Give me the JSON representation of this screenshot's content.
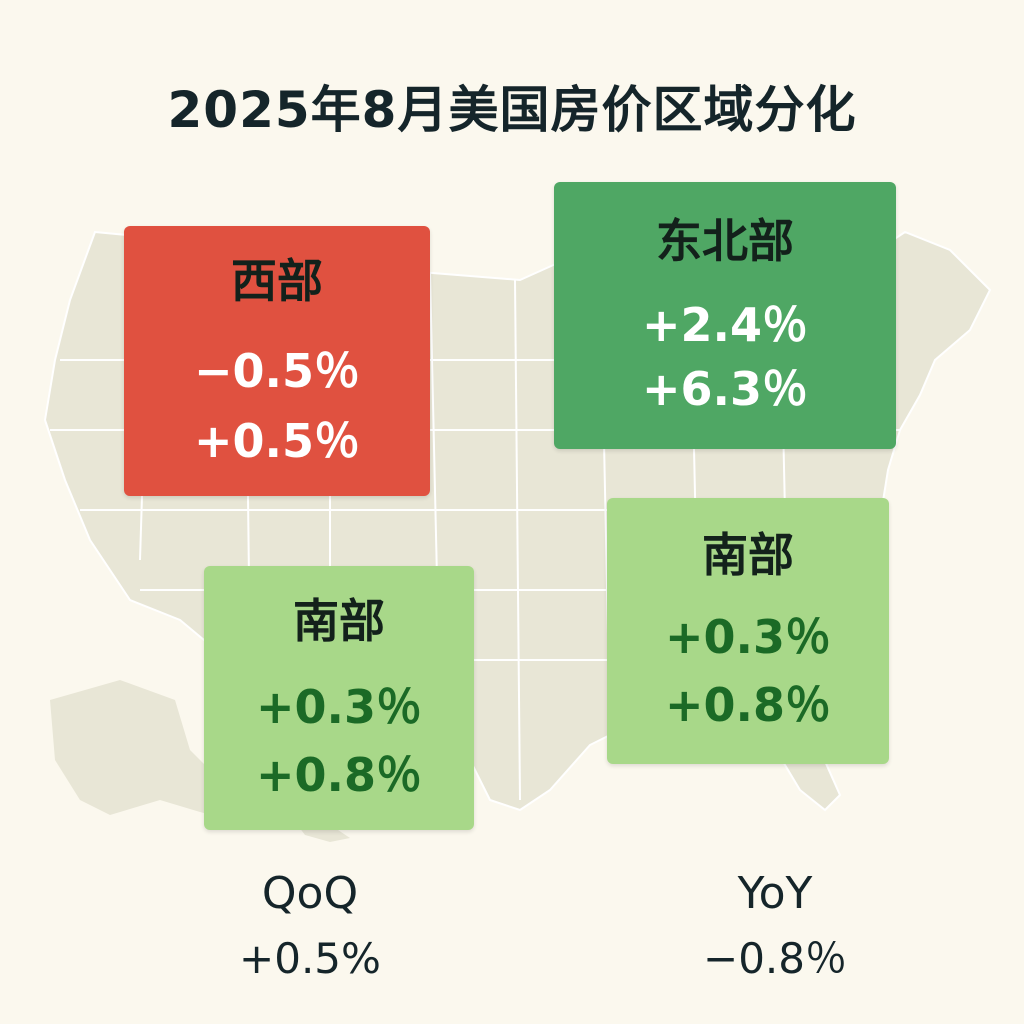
{
  "title": "2025年8月美国房价区域分化",
  "colors": {
    "background": "#fbf8ee",
    "map_fill": "#e8e6d6",
    "decline": "#e05140",
    "strong_growth": "#4fa764",
    "mild_growth": "#a8d889",
    "mild_growth_text": "#1b6a26"
  },
  "regions": [
    {
      "name": "西部",
      "qoq": "−0.5％",
      "yoy": "+0.5％"
    },
    {
      "name": "东北部",
      "qoq": "+2.4％",
      "yoy": "+6.3％"
    },
    {
      "name": "南部",
      "qoq": "+0.3％",
      "yoy": "+0.8％"
    },
    {
      "name": "南部",
      "qoq": "+0.3％",
      "yoy": "+0.8％"
    }
  ],
  "summary": {
    "qoq_label": "QoQ",
    "qoq_value": "+0.5%",
    "yoy_label": "YoY",
    "yoy_value": "−0.8％"
  }
}
